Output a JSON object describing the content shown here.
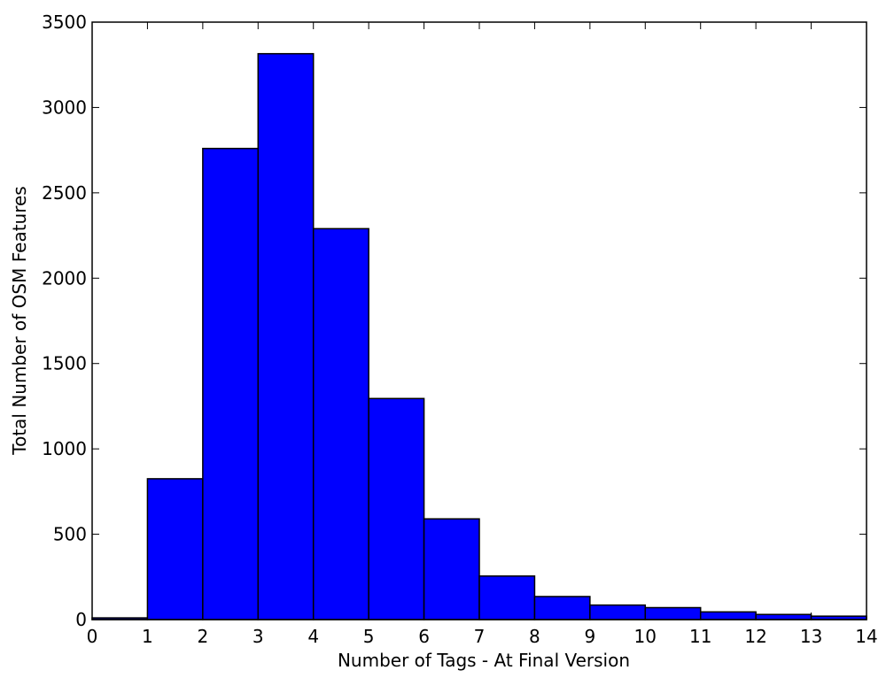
{
  "chart_data": {
    "type": "bar",
    "xlabel": "Number of Tags - At Final Version",
    "ylabel": "Total Number of OSM Features",
    "bin_edges": [
      0,
      1,
      2,
      3,
      4,
      5,
      6,
      7,
      8,
      9,
      10,
      11,
      12,
      13,
      14
    ],
    "values": [
      10,
      825,
      2760,
      3315,
      2290,
      1295,
      590,
      255,
      135,
      85,
      70,
      45,
      30,
      20
    ],
    "xlim": [
      0,
      14
    ],
    "ylim": [
      0,
      3500
    ],
    "xticks": [
      0,
      1,
      2,
      3,
      4,
      5,
      6,
      7,
      8,
      9,
      10,
      11,
      12,
      13,
      14
    ],
    "yticks": [
      0,
      500,
      1000,
      1500,
      2000,
      2500,
      3000,
      3500
    ],
    "grid": false,
    "colors": {
      "bar_fill": "#0000ff",
      "bar_edge": "#000000"
    }
  }
}
